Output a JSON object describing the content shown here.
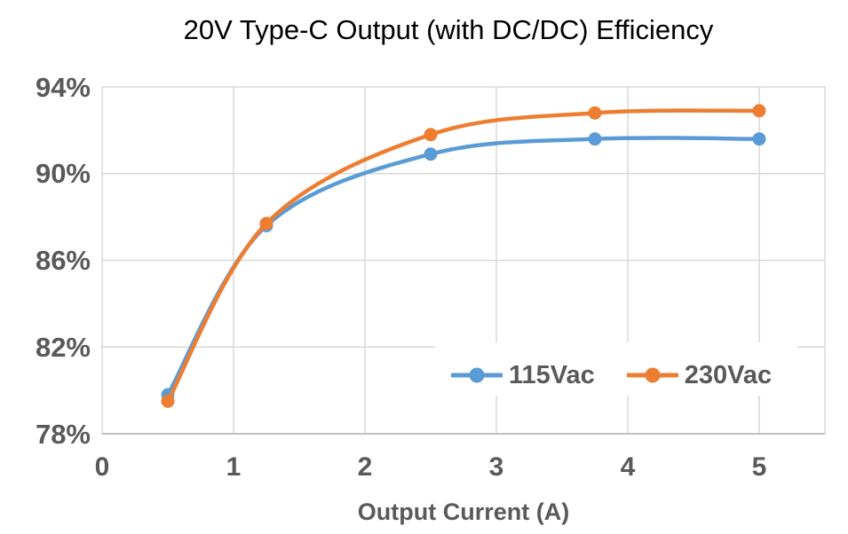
{
  "chart_data": {
    "type": "line",
    "title": "20V Type-C Output (with DC/DC) Efficiency",
    "xlabel": "Output Current (A)",
    "ylabel": "",
    "x": [
      0.5,
      1.25,
      2.5,
      3.75,
      5
    ],
    "series": [
      {
        "name": "115Vac",
        "color": "#5B9BD5",
        "values": [
          79.8,
          87.6,
          90.9,
          91.6,
          91.6
        ]
      },
      {
        "name": "230Vac",
        "color": "#ED7D31",
        "values": [
          79.5,
          87.7,
          91.8,
          92.8,
          92.9
        ]
      }
    ],
    "xlim": [
      0,
      5.5
    ],
    "ylim": [
      78,
      94
    ],
    "x_ticks": [
      0,
      1,
      2,
      3,
      4,
      5
    ],
    "x_tick_labels": [
      "0",
      "1",
      "2",
      "3",
      "4",
      "5"
    ],
    "y_ticks": [
      78,
      82,
      86,
      90,
      94
    ],
    "y_tick_labels": [
      "78%",
      "82%",
      "86%",
      "90%",
      "94%"
    ],
    "grid": true,
    "smooth_lines": true,
    "marker": "circle",
    "legend_position": "inside-bottom-right"
  },
  "colors": {
    "grid": "#D9D9D9",
    "axis_line": "#BFBFBF",
    "tick_text": "#595959",
    "title_text": "#000000",
    "background": "#FFFFFF"
  }
}
